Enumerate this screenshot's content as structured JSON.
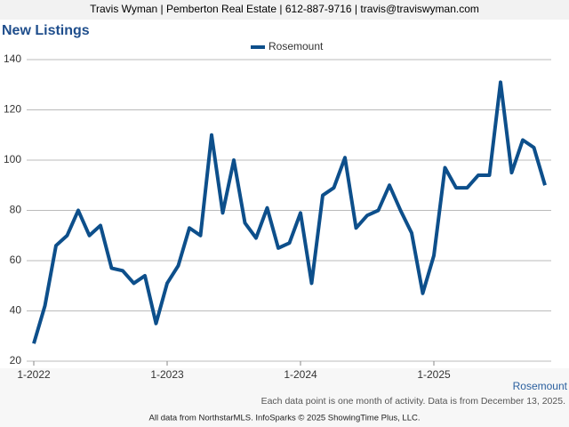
{
  "header": "Travis Wyman | Pemberton Real Estate | 612-887-9716 | travis@traviswyman.com",
  "chart_data": {
    "type": "line",
    "title": "New Listings",
    "categories": [
      "1-2022",
      null,
      null,
      null,
      null,
      null,
      null,
      null,
      null,
      null,
      null,
      null,
      "1-2023",
      null,
      null,
      null,
      null,
      null,
      null,
      null,
      null,
      null,
      null,
      null,
      "1-2024",
      null,
      null,
      null,
      null,
      null,
      null,
      null,
      null,
      null,
      null,
      null,
      "1-2025",
      null,
      null,
      null,
      null,
      null,
      null,
      null,
      null,
      null,
      null
    ],
    "series": [
      {
        "name": "Rosemount",
        "color": "#0d4f8b",
        "values": [
          27,
          42,
          66,
          70,
          80,
          70,
          74,
          57,
          56,
          51,
          54,
          35,
          51,
          58,
          73,
          70,
          110,
          79,
          100,
          75,
          69,
          81,
          65,
          67,
          79,
          51,
          86,
          89,
          101,
          73,
          78,
          80,
          90,
          80,
          71,
          47,
          62,
          97,
          89,
          89,
          94,
          94,
          131,
          95,
          108,
          105,
          90
        ]
      }
    ],
    "ylim": [
      20,
      140
    ],
    "yticks": [
      20,
      40,
      60,
      80,
      100,
      120,
      140
    ],
    "grid": true,
    "area_label": "Rosemount",
    "note": "Each data point is one month of activity. Data is from December 13, 2025.",
    "source": "All data from NorthstarMLS. InfoSparks © 2025 ShowingTime Plus, LLC."
  }
}
